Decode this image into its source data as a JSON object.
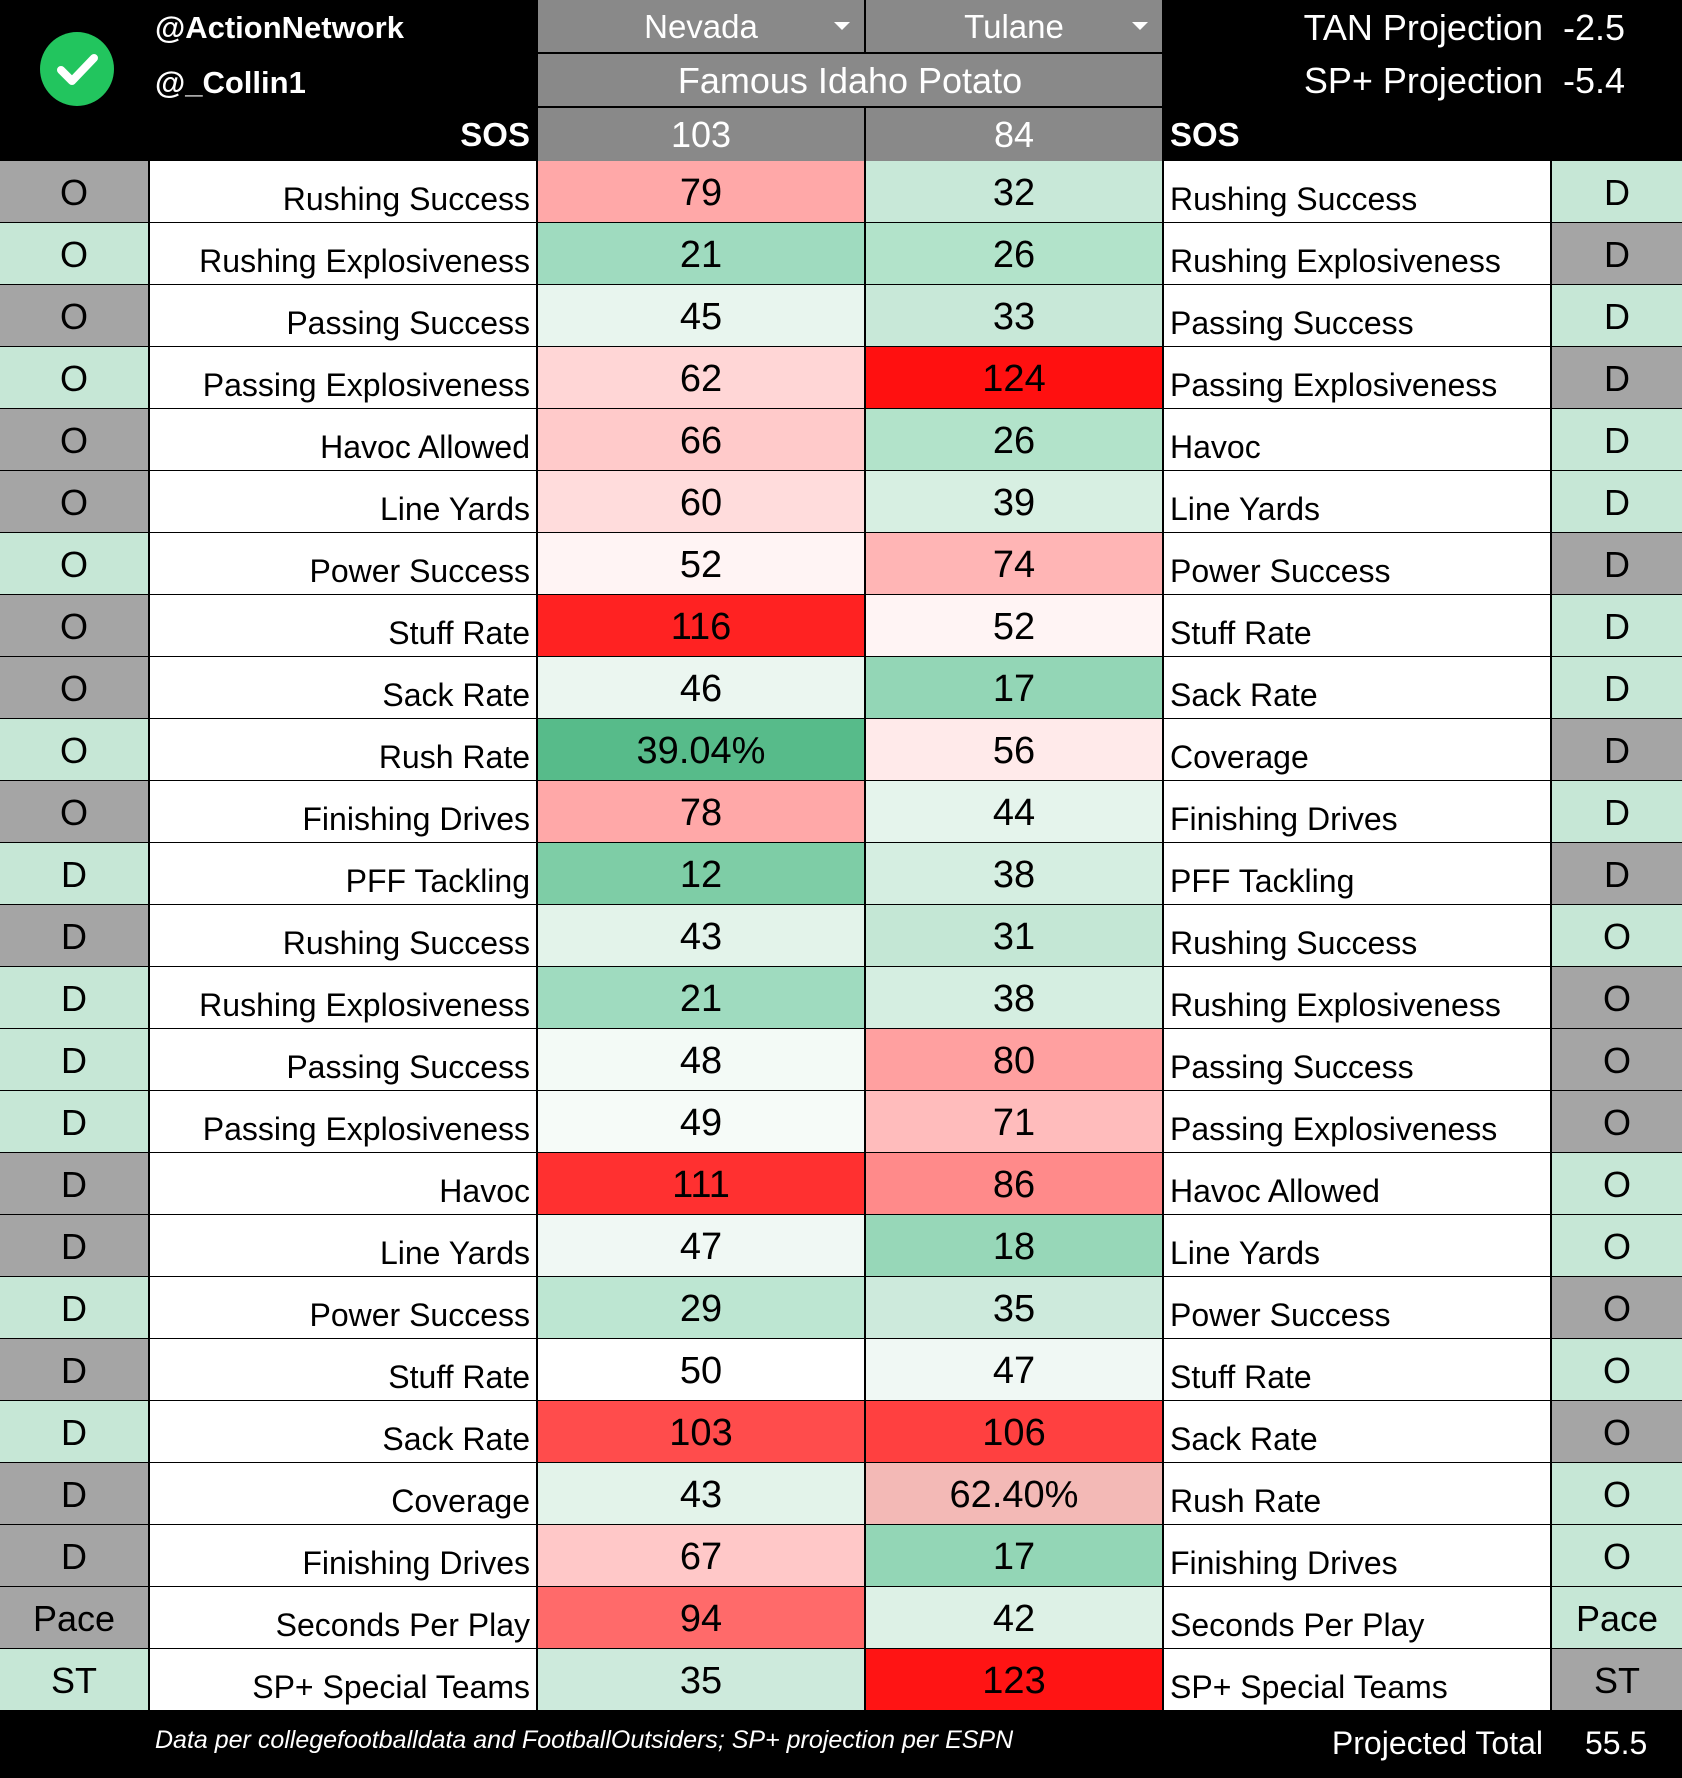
{
  "colors": {
    "tag_green": "#c6e7d6",
    "tag_gray": "#a5a5a5",
    "header_gray": "#898989",
    "badge_green": "#22c55e"
  },
  "icons": {
    "badge": "check-circle-icon",
    "dropdown": "caret-down-icon"
  },
  "header": {
    "handle_1": "@ActionNetwork",
    "handle_2": "@_Collin1",
    "sos_label_left": "SOS",
    "sos_label_right": "SOS",
    "team_left": "Nevada",
    "team_right": "Tulane",
    "bowl": "Famous Idaho Potato",
    "sos_left": "103",
    "sos_right": "84",
    "tan_label": "TAN Projection",
    "tan_value": "-2.5",
    "sp_label": "SP+ Projection",
    "sp_value": "-5.4"
  },
  "rows": [
    {
      "lt": "O",
      "ll": "Rushing Success",
      "nv": "79",
      "tu": "32",
      "rl": "Rushing Success",
      "rt": "D",
      "ltc": "#a5a5a5",
      "rtc": "#c6e7d6",
      "nvc": "#ffa8a8",
      "tuc": "#c8e8d8"
    },
    {
      "lt": "O",
      "ll": "Rushing Explosiveness",
      "nv": "21",
      "tu": "26",
      "rl": "Rushing Explosiveness",
      "rt": "D",
      "ltc": "#c6e7d6",
      "rtc": "#a5a5a5",
      "nvc": "#9fdbbf",
      "tuc": "#b2e3ca"
    },
    {
      "lt": "O",
      "ll": "Passing Success",
      "nv": "45",
      "tu": "33",
      "rl": "Passing Success",
      "rt": "D",
      "ltc": "#a5a5a5",
      "rtc": "#c6e7d6",
      "nvc": "#e8f5ee",
      "tuc": "#c8e8d8"
    },
    {
      "lt": "O",
      "ll": "Passing Explosiveness",
      "nv": "62",
      "tu": "124",
      "rl": "Passing Explosiveness",
      "rt": "D",
      "ltc": "#c6e7d6",
      "rtc": "#a5a5a5",
      "nvc": "#ffd6d6",
      "tuc": "#ff1010"
    },
    {
      "lt": "O",
      "ll": "Havoc Allowed",
      "nv": "66",
      "tu": "26",
      "rl": "Havoc",
      "rt": "D",
      "ltc": "#a5a5a5",
      "rtc": "#c6e7d6",
      "nvc": "#ffcaca",
      "tuc": "#b2e3ca"
    },
    {
      "lt": "O",
      "ll": "Line Yards",
      "nv": "60",
      "tu": "39",
      "rl": "Line Yards",
      "rt": "D",
      "ltc": "#a5a5a5",
      "rtc": "#c6e7d6",
      "nvc": "#ffdcdc",
      "tuc": "#d7efe2"
    },
    {
      "lt": "O",
      "ll": "Power Success",
      "nv": "52",
      "tu": "74",
      "rl": "Power Success",
      "rt": "D",
      "ltc": "#c6e7d6",
      "rtc": "#a5a5a5",
      "nvc": "#fff4f4",
      "tuc": "#ffb5b5"
    },
    {
      "lt": "O",
      "ll": "Stuff Rate",
      "nv": "116",
      "tu": "52",
      "rl": "Stuff Rate",
      "rt": "D",
      "ltc": "#a5a5a5",
      "rtc": "#c6e7d6",
      "nvc": "#ff2222",
      "tuc": "#fff4f4"
    },
    {
      "lt": "O",
      "ll": "Sack Rate",
      "nv": "46",
      "tu": "17",
      "rl": "Sack Rate",
      "rt": "D",
      "ltc": "#a5a5a5",
      "rtc": "#c6e7d6",
      "nvc": "#ebf6f0",
      "tuc": "#93d6b6"
    },
    {
      "lt": "O",
      "ll": "Rush Rate",
      "nv": "39.04%",
      "tu": "56",
      "rl": "Coverage",
      "rt": "D",
      "ltc": "#c6e7d6",
      "rtc": "#a5a5a5",
      "nvc": "#57bb8a",
      "tuc": "#ffeaea"
    },
    {
      "lt": "O",
      "ll": "Finishing Drives",
      "nv": "78",
      "tu": "44",
      "rl": "Finishing Drives",
      "rt": "D",
      "ltc": "#a5a5a5",
      "rtc": "#c6e7d6",
      "nvc": "#ffa8a8",
      "tuc": "#e5f4ec"
    },
    {
      "lt": "D",
      "ll": "PFF Tackling",
      "nv": "12",
      "tu": "38",
      "rl": "PFF Tackling",
      "rt": "D",
      "ltc": "#c6e7d6",
      "rtc": "#a5a5a5",
      "nvc": "#7ecda6",
      "tuc": "#d5eee1"
    },
    {
      "lt": "D",
      "ll": "Rushing Success",
      "nv": "43",
      "tu": "31",
      "rl": "Rushing Success",
      "rt": "O",
      "ltc": "#a5a5a5",
      "rtc": "#c6e7d6",
      "nvc": "#e3f3ea",
      "tuc": "#c4e7d5"
    },
    {
      "lt": "D",
      "ll": "Rushing Explosiveness",
      "nv": "21",
      "tu": "38",
      "rl": "Rushing Explosiveness",
      "rt": "O",
      "ltc": "#c6e7d6",
      "rtc": "#a5a5a5",
      "nvc": "#9fdbbf",
      "tuc": "#d5eee1"
    },
    {
      "lt": "D",
      "ll": "Passing Success",
      "nv": "48",
      "tu": "80",
      "rl": "Passing Success",
      "rt": "O",
      "ltc": "#c6e7d6",
      "rtc": "#a5a5a5",
      "nvc": "#f3faf6",
      "tuc": "#ffa0a0"
    },
    {
      "lt": "D",
      "ll": "Passing Explosiveness",
      "nv": "49",
      "tu": "71",
      "rl": "Passing Explosiveness",
      "rt": "O",
      "ltc": "#c6e7d6",
      "rtc": "#a5a5a5",
      "nvc": "#f6fbf8",
      "tuc": "#ffbcbc"
    },
    {
      "lt": "D",
      "ll": "Havoc",
      "nv": "111",
      "tu": "86",
      "rl": "Havoc Allowed",
      "rt": "O",
      "ltc": "#a5a5a5",
      "rtc": "#c6e7d6",
      "nvc": "#ff3030",
      "tuc": "#ff8a8a"
    },
    {
      "lt": "D",
      "ll": "Line Yards",
      "nv": "47",
      "tu": "18",
      "rl": "Line Yards",
      "rt": "O",
      "ltc": "#a5a5a5",
      "rtc": "#c6e7d6",
      "nvc": "#f0f8f4",
      "tuc": "#97d7b8"
    },
    {
      "lt": "D",
      "ll": "Power Success",
      "nv": "29",
      "tu": "35",
      "rl": "Power Success",
      "rt": "O",
      "ltc": "#c6e7d6",
      "rtc": "#a5a5a5",
      "nvc": "#bde6d2",
      "tuc": "#cdeadc"
    },
    {
      "lt": "D",
      "ll": "Stuff Rate",
      "nv": "50",
      "tu": "47",
      "rl": "Stuff Rate",
      "rt": "O",
      "ltc": "#a5a5a5",
      "rtc": "#c6e7d6",
      "nvc": "#ffffff",
      "tuc": "#f0f8f4"
    },
    {
      "lt": "D",
      "ll": "Sack Rate",
      "nv": "103",
      "tu": "106",
      "rl": "Sack Rate",
      "rt": "O",
      "ltc": "#c6e7d6",
      "rtc": "#a5a5a5",
      "nvc": "#ff4c4c",
      "tuc": "#ff4040"
    },
    {
      "lt": "D",
      "ll": "Coverage",
      "nv": "43",
      "tu": "62.40%",
      "rl": "Rush Rate",
      "rt": "O",
      "ltc": "#a5a5a5",
      "rtc": "#c6e7d6",
      "nvc": "#e3f3ea",
      "tuc": "#f3b9b6"
    },
    {
      "lt": "D",
      "ll": "Finishing Drives",
      "nv": "67",
      "tu": "17",
      "rl": "Finishing Drives",
      "rt": "O",
      "ltc": "#a5a5a5",
      "rtc": "#c6e7d6",
      "nvc": "#ffc8c8",
      "tuc": "#93d6b6"
    },
    {
      "lt": "Pace",
      "ll": "Seconds Per Play",
      "nv": "94",
      "tu": "42",
      "rl": "Seconds Per Play",
      "rt": "Pace",
      "ltc": "#a5a5a5",
      "rtc": "#c6e7d6",
      "nvc": "#ff6a6a",
      "tuc": "#ddf1e6"
    },
    {
      "lt": "ST",
      "ll": "SP+ Special Teams",
      "nv": "35",
      "tu": "123",
      "rl": "SP+ Special Teams",
      "rt": "ST",
      "ltc": "#c6e7d6",
      "rtc": "#a5a5a5",
      "nvc": "#cdeadc",
      "tuc": "#ff1414"
    }
  ],
  "footer": {
    "note": "Data per collegefootballdata and FootballOutsiders; SP+ projection per ESPN",
    "total_label": "Projected Total",
    "total_value": "55.5"
  }
}
